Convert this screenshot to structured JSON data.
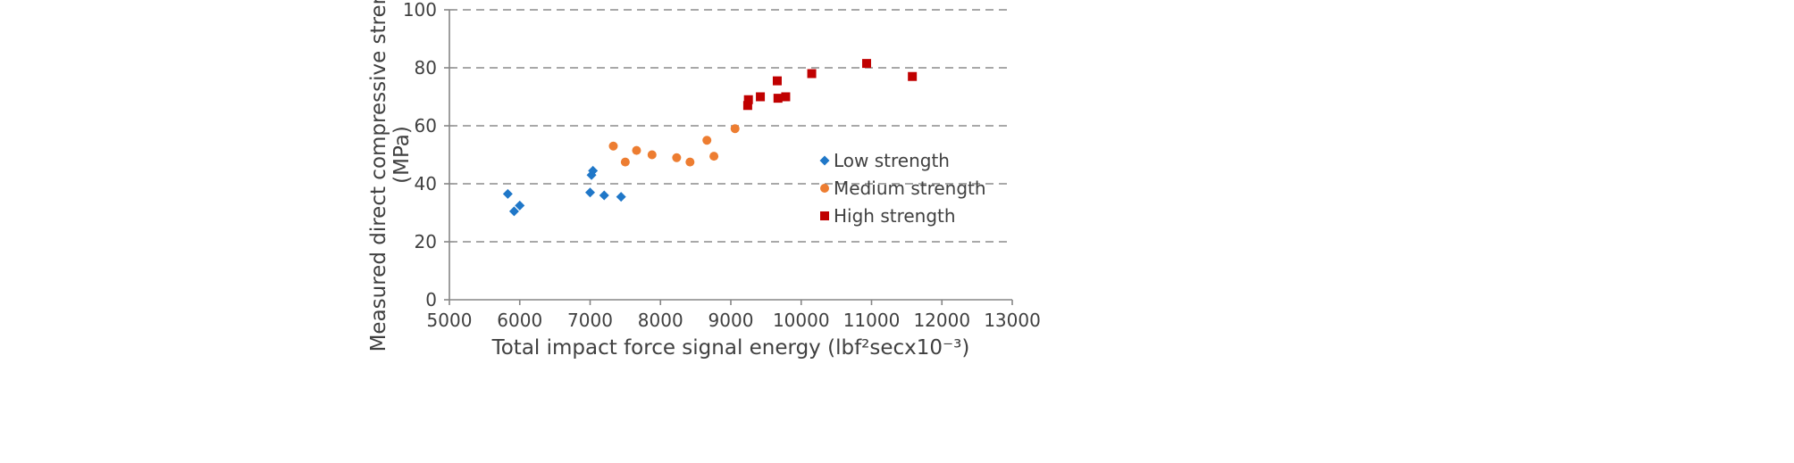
{
  "chart_data": {
    "type": "scatter",
    "title": "",
    "xlabel": "Total impact force signal energy (lbf²secx10⁻³)",
    "ylabel_line1": "Measured direct compressive strength",
    "ylabel_line2": "(MPa)",
    "xlim": [
      5000,
      13000
    ],
    "ylim": [
      0,
      100
    ],
    "xticks": [
      5000,
      6000,
      7000,
      8000,
      9000,
      10000,
      11000,
      12000,
      13000
    ],
    "yticks": [
      0,
      20,
      40,
      60,
      80,
      100
    ],
    "grid": "horizontal dashed",
    "legend_position": "inside-right",
    "series": [
      {
        "name": "Low strength",
        "marker": "diamond",
        "color": "#1f77c8",
        "points": [
          {
            "x": 5830,
            "y": 36.5
          },
          {
            "x": 5920,
            "y": 30.5
          },
          {
            "x": 6000,
            "y": 32.5
          },
          {
            "x": 7000,
            "y": 37.0
          },
          {
            "x": 7020,
            "y": 43.0
          },
          {
            "x": 7040,
            "y": 44.5
          },
          {
            "x": 7200,
            "y": 36.0
          },
          {
            "x": 7440,
            "y": 35.5
          }
        ]
      },
      {
        "name": "Medium strength",
        "marker": "circle",
        "color": "#ed7d31",
        "points": [
          {
            "x": 7330,
            "y": 53.0
          },
          {
            "x": 7500,
            "y": 47.5
          },
          {
            "x": 7660,
            "y": 51.5
          },
          {
            "x": 7880,
            "y": 50.0
          },
          {
            "x": 8230,
            "y": 49.0
          },
          {
            "x": 8420,
            "y": 47.5
          },
          {
            "x": 8660,
            "y": 55.0
          },
          {
            "x": 8760,
            "y": 49.5
          },
          {
            "x": 9060,
            "y": 59.0
          }
        ]
      },
      {
        "name": "High strength",
        "marker": "square",
        "color": "#c00000",
        "points": [
          {
            "x": 9240,
            "y": 67.0
          },
          {
            "x": 9250,
            "y": 69.0
          },
          {
            "x": 9420,
            "y": 70.0
          },
          {
            "x": 9660,
            "y": 75.5
          },
          {
            "x": 9670,
            "y": 69.5
          },
          {
            "x": 9780,
            "y": 70.0
          },
          {
            "x": 10150,
            "y": 78.0
          },
          {
            "x": 10930,
            "y": 81.5
          },
          {
            "x": 11580,
            "y": 77.0
          }
        ]
      }
    ]
  }
}
